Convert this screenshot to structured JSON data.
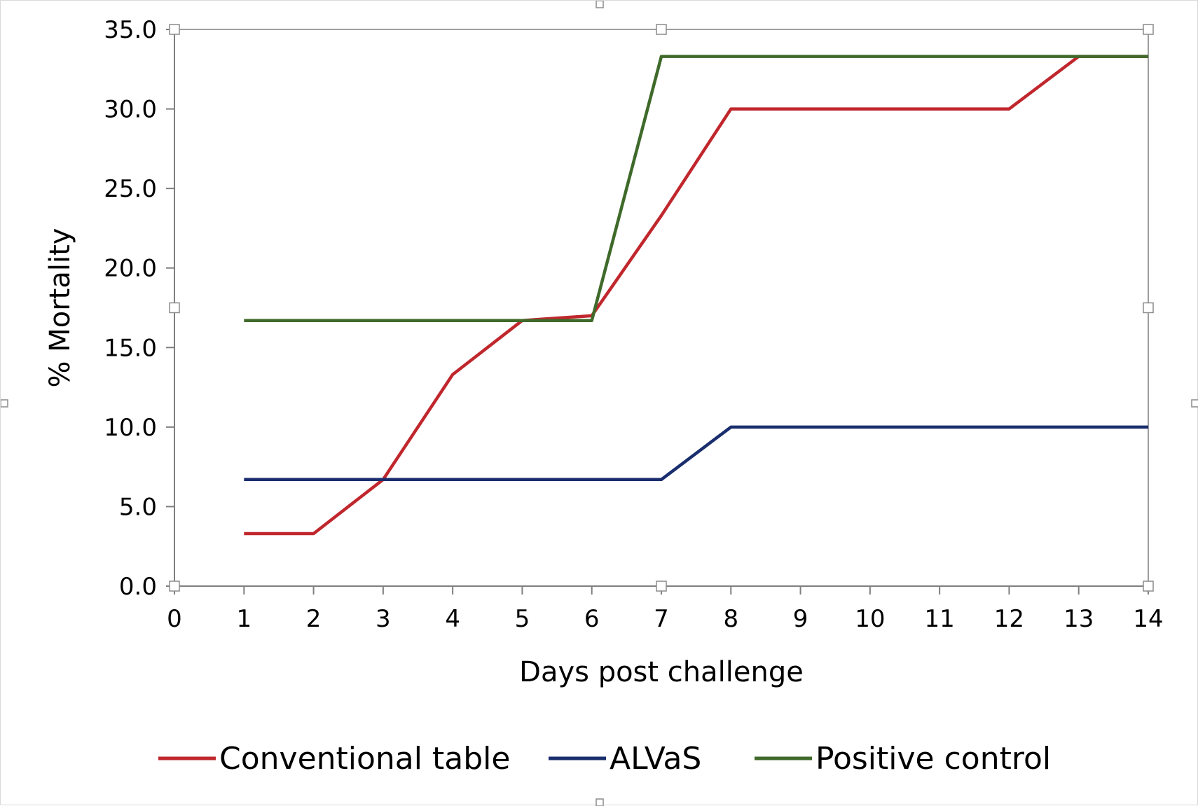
{
  "chart_data": {
    "type": "line",
    "xlabel": "Days post challenge",
    "ylabel": "% Mortality",
    "xlim": [
      0,
      14
    ],
    "ylim": [
      0,
      35
    ],
    "x_ticks": [
      0,
      1,
      2,
      3,
      4,
      5,
      6,
      7,
      8,
      9,
      10,
      11,
      12,
      13,
      14
    ],
    "y_ticks": [
      "0.0",
      "5.0",
      "10.0",
      "15.0",
      "20.0",
      "25.0",
      "30.0",
      "35.0"
    ],
    "grid": false,
    "legend_position": "bottom",
    "x": [
      1,
      2,
      3,
      4,
      5,
      6,
      7,
      8,
      9,
      10,
      11,
      12,
      13,
      14
    ],
    "series": [
      {
        "name": "Conventional table",
        "color": "#c0272d",
        "values": [
          3.3,
          3.3,
          6.7,
          13.3,
          16.7,
          17.0,
          23.3,
          30.0,
          30.0,
          30.0,
          30.0,
          30.0,
          33.3,
          33.3
        ]
      },
      {
        "name": "ALVaS",
        "color": "#1a2e6e",
        "values": [
          6.7,
          6.7,
          6.7,
          6.7,
          6.7,
          6.7,
          6.7,
          10.0,
          10.0,
          10.0,
          10.0,
          10.0,
          10.0,
          10.0
        ]
      },
      {
        "name": "Positive control",
        "color": "#3f6a2a",
        "values": [
          16.7,
          16.7,
          16.7,
          16.7,
          16.7,
          16.7,
          33.3,
          33.3,
          33.3,
          33.3,
          33.3,
          33.3,
          33.3,
          33.3
        ]
      }
    ]
  },
  "style": {
    "axis_color": "#7f7f7f",
    "frame_color": "#d9d9d9"
  }
}
